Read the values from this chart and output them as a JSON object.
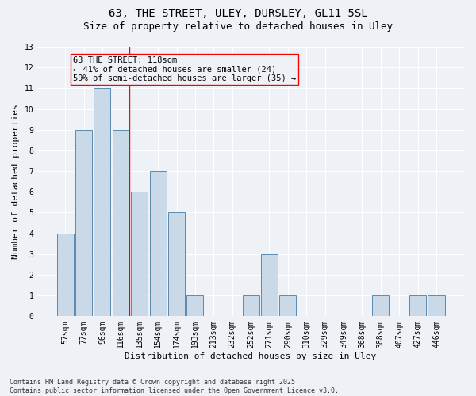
{
  "title1": "63, THE STREET, ULEY, DURSLEY, GL11 5SL",
  "title2": "Size of property relative to detached houses in Uley",
  "xlabel": "Distribution of detached houses by size in Uley",
  "ylabel": "Number of detached properties",
  "categories": [
    "57sqm",
    "77sqm",
    "96sqm",
    "116sqm",
    "135sqm",
    "154sqm",
    "174sqm",
    "193sqm",
    "213sqm",
    "232sqm",
    "252sqm",
    "271sqm",
    "290sqm",
    "310sqm",
    "329sqm",
    "349sqm",
    "368sqm",
    "388sqm",
    "407sqm",
    "427sqm",
    "446sqm"
  ],
  "values": [
    4,
    9,
    11,
    9,
    6,
    7,
    5,
    1,
    0,
    0,
    1,
    3,
    1,
    0,
    0,
    0,
    0,
    1,
    0,
    1,
    1
  ],
  "bar_color": "#c9d9e8",
  "bar_edge_color": "#5a8ab0",
  "highlight_bar_index": 3,
  "annotation_box_text": "63 THE STREET: 118sqm\n← 41% of detached houses are smaller (24)\n59% of semi-detached houses are larger (35) →",
  "ylim": [
    0,
    13
  ],
  "yticks": [
    0,
    1,
    2,
    3,
    4,
    5,
    6,
    7,
    8,
    9,
    10,
    11,
    12,
    13
  ],
  "background_color": "#eef2f7",
  "grid_color": "#ffffff",
  "footer_text": "Contains HM Land Registry data © Crown copyright and database right 2025.\nContains public sector information licensed under the Open Government Licence v3.0.",
  "title_fontsize": 10,
  "subtitle_fontsize": 9,
  "axis_label_fontsize": 8,
  "tick_fontsize": 7,
  "annotation_fontsize": 7.5,
  "footer_fontsize": 6
}
